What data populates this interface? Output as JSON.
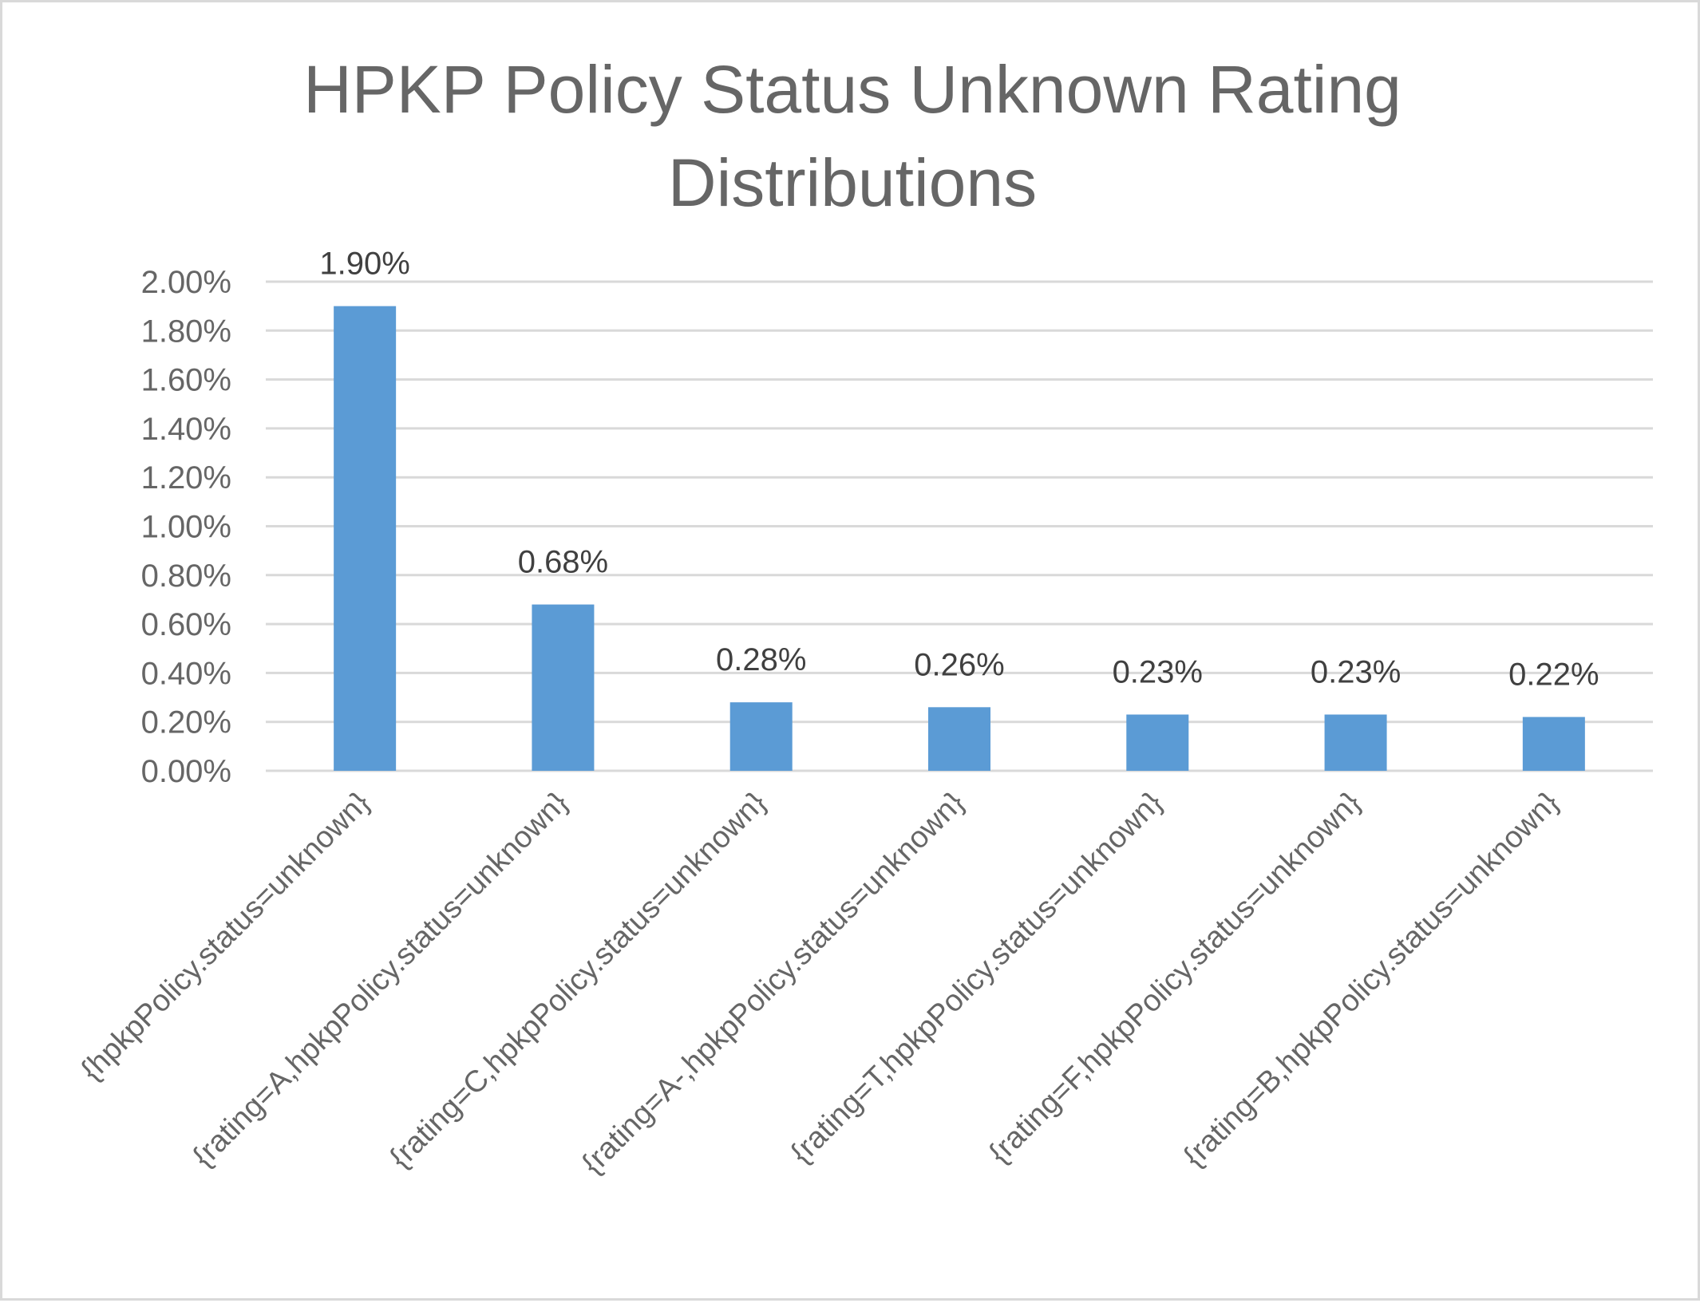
{
  "chart_data": {
    "type": "bar",
    "title_lines": [
      "HPKP Policy Status Unknown Rating",
      "Distributions"
    ],
    "xlabel": "",
    "ylabel": "",
    "categories": [
      "{hpkpPolicy.status=unknown}",
      "{rating=A,hpkpPolicy.status=unknown}",
      "{rating=C,hpkpPolicy.status=unknown}",
      "{rating=A-,hpkpPolicy.status=unknown}",
      "{rating=T,hpkpPolicy.status=unknown}",
      "{rating=F,hpkpPolicy.status=unknown}",
      "{rating=B,hpkpPolicy.status=unknown}"
    ],
    "values": [
      1.9,
      0.68,
      0.28,
      0.26,
      0.23,
      0.23,
      0.22
    ],
    "value_labels": [
      "1.90%",
      "0.68%",
      "0.28%",
      "0.26%",
      "0.23%",
      "0.23%",
      "0.22%"
    ],
    "ylim": [
      0,
      2.0
    ],
    "yticks": [
      0,
      0.2,
      0.4,
      0.6,
      0.8,
      1.0,
      1.2,
      1.4,
      1.6,
      1.8,
      2.0
    ],
    "ytick_labels": [
      "0.00%",
      "0.20%",
      "0.40%",
      "0.60%",
      "0.80%",
      "1.00%",
      "1.20%",
      "1.40%",
      "1.60%",
      "1.80%",
      "2.00%"
    ],
    "grid": true,
    "legend": "none",
    "colors": {
      "bar": "#5b9bd5",
      "grid": "#d9d9d9",
      "axis_text": "#666666",
      "label_text": "#404040"
    }
  }
}
